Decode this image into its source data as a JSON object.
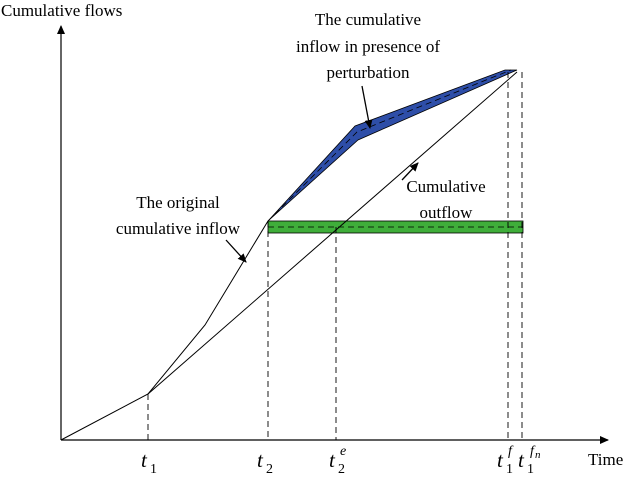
{
  "axes": {
    "y_label": "Cumulative flows",
    "x_label": "Time"
  },
  "annotations": {
    "perturbed_inflow": [
      "The cumulative",
      "inflow in presence of",
      "perturbation"
    ],
    "original_inflow": [
      "The original",
      "cumulative inflow"
    ],
    "outflow": [
      "Cumulative",
      "outflow"
    ]
  },
  "ticks": {
    "t1": {
      "base": "t",
      "sub": "1"
    },
    "t2": {
      "base": "t",
      "sub": "2"
    },
    "t2e": {
      "base": "t",
      "sub": "2",
      "sup": "e"
    },
    "t1f": {
      "base": "t",
      "sub": "1",
      "sup": "f"
    },
    "t1fn": {
      "base": "t",
      "sub": "1",
      "sup": "f",
      "supsub": "n"
    }
  },
  "colors": {
    "perturbed_band": "#2e4ea8",
    "outflow_band": "#3fae3a",
    "line": "#000000"
  }
}
